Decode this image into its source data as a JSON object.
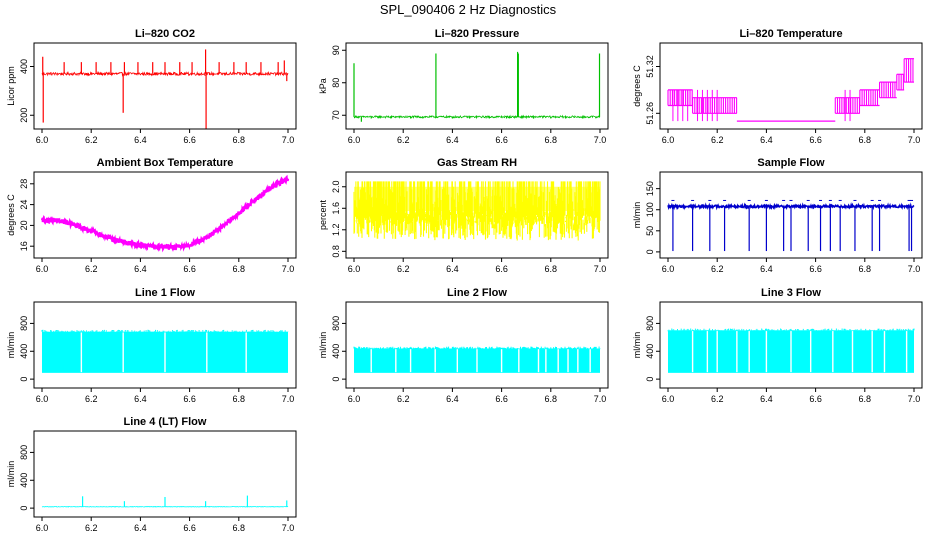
{
  "figure": {
    "title": "SPL_090406  2 Hz Diagnostics"
  },
  "chart_data": [
    {
      "id": "li820-co2",
      "type": "line",
      "title": "Li–820 CO2",
      "xlabel": "",
      "ylabel": "Licor ppm",
      "color": "#ff0000",
      "xlim": [
        6.0,
        7.0
      ],
      "ylim": [
        160,
        480
      ],
      "x_ticks": [
        6.0,
        6.2,
        6.4,
        6.6,
        6.8,
        7.0
      ],
      "x_tick_labels": [
        "6.0",
        "6.2",
        "6.4",
        "6.6",
        "6.8",
        "7.0"
      ],
      "y_ticks": [
        200,
        400
      ],
      "y_tick_labels": [
        "200",
        "400"
      ],
      "baseline": 370,
      "noise": 6,
      "spikes": [
        {
          "x": 6.003,
          "y": 440
        },
        {
          "x": 6.005,
          "y": 170
        },
        {
          "x": 6.09,
          "y": 418
        },
        {
          "x": 6.16,
          "y": 418
        },
        {
          "x": 6.22,
          "y": 418
        },
        {
          "x": 6.28,
          "y": 418
        },
        {
          "x": 6.33,
          "y": 210
        },
        {
          "x": 6.335,
          "y": 418
        },
        {
          "x": 6.39,
          "y": 418
        },
        {
          "x": 6.45,
          "y": 418
        },
        {
          "x": 6.5,
          "y": 418
        },
        {
          "x": 6.56,
          "y": 418
        },
        {
          "x": 6.61,
          "y": 418
        },
        {
          "x": 6.665,
          "y": 470
        },
        {
          "x": 6.667,
          "y": 120
        },
        {
          "x": 6.72,
          "y": 418
        },
        {
          "x": 6.78,
          "y": 418
        },
        {
          "x": 6.83,
          "y": 418
        },
        {
          "x": 6.89,
          "y": 418
        },
        {
          "x": 6.96,
          "y": 418
        },
        {
          "x": 6.985,
          "y": 425
        },
        {
          "x": 6.995,
          "y": 340
        }
      ]
    },
    {
      "id": "li820-pressure",
      "type": "line",
      "title": "Li–820 Pressure",
      "xlabel": "",
      "ylabel": "kPa",
      "color": "#00c000",
      "xlim": [
        6.0,
        7.0
      ],
      "ylim": [
        67,
        91
      ],
      "x_ticks": [
        6.0,
        6.2,
        6.4,
        6.6,
        6.8,
        7.0
      ],
      "x_tick_labels": [
        "6.0",
        "6.2",
        "6.4",
        "6.6",
        "6.8",
        "7.0"
      ],
      "y_ticks": [
        70,
        80,
        90
      ],
      "y_tick_labels": [
        "70",
        "80",
        "90"
      ],
      "baseline": 69.5,
      "noise": 0.3,
      "spikes": [
        {
          "x": 6.0,
          "y": 86
        },
        {
          "x": 6.03,
          "y": 68
        },
        {
          "x": 6.07,
          "y": 69
        },
        {
          "x": 6.15,
          "y": 69
        },
        {
          "x": 6.23,
          "y": 69
        },
        {
          "x": 6.28,
          "y": 69
        },
        {
          "x": 6.333,
          "y": 89
        },
        {
          "x": 6.4,
          "y": 69
        },
        {
          "x": 6.47,
          "y": 69
        },
        {
          "x": 6.55,
          "y": 69
        },
        {
          "x": 6.62,
          "y": 69
        },
        {
          "x": 6.665,
          "y": 89.5
        },
        {
          "x": 6.668,
          "y": 89
        },
        {
          "x": 6.73,
          "y": 69
        },
        {
          "x": 6.8,
          "y": 69
        },
        {
          "x": 6.86,
          "y": 69
        },
        {
          "x": 6.93,
          "y": 69
        },
        {
          "x": 6.998,
          "y": 89
        }
      ]
    },
    {
      "id": "li820-temperature",
      "type": "line",
      "title": "Li–820 Temperature",
      "xlabel": "",
      "ylabel": "degrees C",
      "color": "#ff00ff",
      "xlim": [
        6.0,
        7.0
      ],
      "ylim": [
        51.245,
        51.345
      ],
      "x_ticks": [
        6.0,
        6.2,
        6.4,
        6.6,
        6.8,
        7.0
      ],
      "x_tick_labels": [
        "6.0",
        "6.2",
        "6.4",
        "6.6",
        "6.8",
        "7.0"
      ],
      "y_ticks": [
        51.26,
        51.32
      ],
      "y_tick_labels": [
        "51.26",
        "51.32"
      ],
      "segments": [
        {
          "x0": 6.0,
          "x1": 6.1,
          "lo": 51.27,
          "hi": 51.29
        },
        {
          "x0": 6.1,
          "x1": 6.28,
          "lo": 51.26,
          "hi": 51.28
        },
        {
          "x0": 6.28,
          "x1": 6.68,
          "lo": 51.25,
          "hi": 51.25
        },
        {
          "x0": 6.68,
          "x1": 6.78,
          "lo": 51.26,
          "hi": 51.28
        },
        {
          "x0": 6.78,
          "x1": 6.86,
          "lo": 51.27,
          "hi": 51.29
        },
        {
          "x0": 6.86,
          "x1": 6.93,
          "lo": 51.28,
          "hi": 51.3
        },
        {
          "x0": 6.93,
          "x1": 6.96,
          "lo": 51.29,
          "hi": 51.31
        },
        {
          "x0": 6.96,
          "x1": 7.0,
          "lo": 51.3,
          "hi": 51.33
        }
      ]
    },
    {
      "id": "ambient-box-temperature",
      "type": "line",
      "title": "Ambient Box Temperature",
      "xlabel": "",
      "ylabel": "degrees C",
      "color": "#ff00ff",
      "xlim": [
        6.0,
        7.0
      ],
      "ylim": [
        14.5,
        29.5
      ],
      "x_ticks": [
        6.0,
        6.2,
        6.4,
        6.6,
        6.8,
        7.0
      ],
      "x_tick_labels": [
        "6.0",
        "6.2",
        "6.4",
        "6.6",
        "6.8",
        "7.0"
      ],
      "y_ticks": [
        16,
        20,
        24,
        28
      ],
      "y_tick_labels": [
        "16",
        "20",
        "24",
        "28"
      ],
      "curve": [
        {
          "x": 6.0,
          "y": 21.0
        },
        {
          "x": 6.05,
          "y": 21.0
        },
        {
          "x": 6.1,
          "y": 20.6
        },
        {
          "x": 6.15,
          "y": 19.8
        },
        {
          "x": 6.2,
          "y": 18.9
        },
        {
          "x": 6.25,
          "y": 18.0
        },
        {
          "x": 6.3,
          "y": 17.2
        },
        {
          "x": 6.35,
          "y": 16.6
        },
        {
          "x": 6.4,
          "y": 16.2
        },
        {
          "x": 6.45,
          "y": 16.0
        },
        {
          "x": 6.5,
          "y": 15.9
        },
        {
          "x": 6.55,
          "y": 15.9
        },
        {
          "x": 6.6,
          "y": 16.2
        },
        {
          "x": 6.65,
          "y": 17.2
        },
        {
          "x": 6.7,
          "y": 18.6
        },
        {
          "x": 6.75,
          "y": 20.4
        },
        {
          "x": 6.8,
          "y": 22.3
        },
        {
          "x": 6.85,
          "y": 24.3
        },
        {
          "x": 6.9,
          "y": 26.2
        },
        {
          "x": 6.95,
          "y": 27.8
        },
        {
          "x": 7.0,
          "y": 29.0
        }
      ],
      "noise": 0.45
    },
    {
      "id": "gas-stream-rh",
      "type": "line",
      "title": "Gas Stream RH",
      "xlabel": "",
      "ylabel": "percent",
      "color": "#ffff00",
      "xlim": [
        6.0,
        7.0
      ],
      "ylim": [
        0.75,
        2.2
      ],
      "x_ticks": [
        6.0,
        6.2,
        6.4,
        6.6,
        6.8,
        7.0
      ],
      "x_tick_labels": [
        "6.0",
        "6.2",
        "6.4",
        "6.6",
        "6.8",
        "7.0"
      ],
      "y_ticks": [
        0.8,
        1.2,
        1.6,
        2.0
      ],
      "y_tick_labels": [
        "0.8",
        "1.2",
        "1.6",
        "2.0"
      ],
      "band": [
        1.0,
        2.1
      ],
      "core": [
        1.3,
        2.0
      ]
    },
    {
      "id": "sample-flow",
      "type": "line",
      "title": "Sample Flow",
      "xlabel": "",
      "ylabel": "ml/min",
      "color": "#0000cc",
      "xlim": [
        6.0,
        7.0
      ],
      "ylim": [
        -5,
        180
      ],
      "x_ticks": [
        6.0,
        6.2,
        6.4,
        6.6,
        6.8,
        7.0
      ],
      "x_tick_labels": [
        "6.0",
        "6.2",
        "6.4",
        "6.6",
        "6.8",
        "7.0"
      ],
      "y_ticks": [
        0,
        50,
        100,
        150
      ],
      "y_tick_labels": [
        "0",
        "50",
        "100",
        "150"
      ],
      "baseline": 108,
      "noise": 3,
      "dips": [
        6.02,
        6.1,
        6.17,
        6.23,
        6.33,
        6.4,
        6.47,
        6.5,
        6.57,
        6.62,
        6.66,
        6.7,
        6.76,
        6.83,
        6.86,
        6.98,
        6.99
      ]
    },
    {
      "id": "line-1-flow",
      "type": "line",
      "title": "Line 1 Flow",
      "xlabel": "",
      "ylabel": "ml/min",
      "color": "#00ffff",
      "xlim": [
        6.0,
        7.0
      ],
      "ylim": [
        -70,
        1050
      ],
      "x_ticks": [
        6.0,
        6.2,
        6.4,
        6.6,
        6.8,
        7.0
      ],
      "x_tick_labels": [
        "6.0",
        "6.2",
        "6.4",
        "6.6",
        "6.8",
        "7.0"
      ],
      "y_ticks": [
        0,
        400,
        800
      ],
      "y_tick_labels": [
        "0",
        "400",
        "800"
      ],
      "low": 90,
      "high": 680,
      "gaps": [
        6.16,
        6.33,
        6.5,
        6.67,
        6.83
      ]
    },
    {
      "id": "line-2-flow",
      "type": "line",
      "title": "Line 2 Flow",
      "xlabel": "",
      "ylabel": "ml/min",
      "color": "#00ffff",
      "xlim": [
        6.0,
        7.0
      ],
      "ylim": [
        -70,
        1050
      ],
      "x_ticks": [
        6.0,
        6.2,
        6.4,
        6.6,
        6.8,
        7.0
      ],
      "x_tick_labels": [
        "6.0",
        "6.2",
        "6.4",
        "6.6",
        "6.8",
        "7.0"
      ],
      "y_ticks": [
        0,
        400,
        800
      ],
      "y_tick_labels": [
        "0",
        "400",
        "800"
      ],
      "low": 90,
      "high": 440,
      "gaps": [
        6.07,
        6.17,
        6.23,
        6.33,
        6.42,
        6.5,
        6.6,
        6.67,
        6.75,
        6.78,
        6.83,
        6.87,
        6.91,
        6.96
      ]
    },
    {
      "id": "line-3-flow",
      "type": "line",
      "title": "Line 3 Flow",
      "xlabel": "",
      "ylabel": "ml/min",
      "color": "#00ffff",
      "xlim": [
        6.0,
        7.0
      ],
      "ylim": [
        -70,
        1050
      ],
      "x_ticks": [
        6.0,
        6.2,
        6.4,
        6.6,
        6.8,
        7.0
      ],
      "x_tick_labels": [
        "6.0",
        "6.2",
        "6.4",
        "6.6",
        "6.8",
        "7.0"
      ],
      "y_ticks": [
        0,
        400,
        800
      ],
      "y_tick_labels": [
        "0",
        "400",
        "800"
      ],
      "low": 90,
      "high": 700,
      "gaps": [
        6.1,
        6.16,
        6.2,
        6.28,
        6.33,
        6.4,
        6.5,
        6.58,
        6.67,
        6.75,
        6.83,
        6.88,
        6.97
      ]
    },
    {
      "id": "line-4-lt-flow",
      "type": "line",
      "title": "Line 4 (LT) Flow",
      "xlabel": "",
      "ylabel": "ml/min",
      "color": "#00ffff",
      "xlim": [
        6.0,
        7.0
      ],
      "ylim": [
        -70,
        1050
      ],
      "x_ticks": [
        6.0,
        6.2,
        6.4,
        6.6,
        6.8,
        7.0
      ],
      "x_tick_labels": [
        "6.0",
        "6.2",
        "6.4",
        "6.6",
        "6.8",
        "7.0"
      ],
      "y_ticks": [
        0,
        400,
        800
      ],
      "y_tick_labels": [
        "0",
        "400",
        "800"
      ],
      "baseline": 20,
      "noise": 4,
      "spikes": [
        {
          "x": 6.165,
          "y": 170
        },
        {
          "x": 6.335,
          "y": 100
        },
        {
          "x": 6.5,
          "y": 160
        },
        {
          "x": 6.665,
          "y": 100
        },
        {
          "x": 6.835,
          "y": 180
        },
        {
          "x": 6.995,
          "y": 110
        }
      ]
    }
  ]
}
